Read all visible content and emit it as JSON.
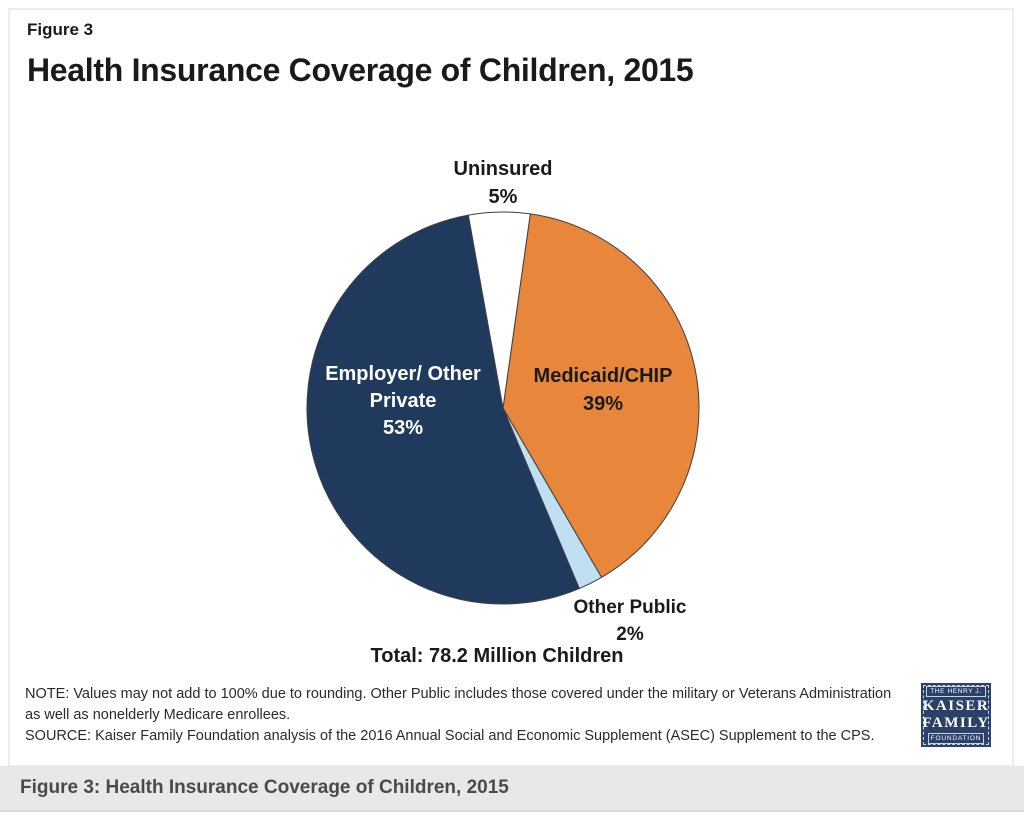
{
  "page": {
    "figure_label": "Figure 3",
    "title": "Health Insurance Coverage of Children, 2015",
    "note_text": "NOTE: Values may not add to 100% due to rounding. Other Public includes those covered under the military or Veterans Administration as well as nonelderly Medicare enrollees.",
    "source_text": "SOURCE: Kaiser Family Foundation analysis of the 2016 Annual Social and Economic Supplement (ASEC) Supplement to the CPS.",
    "footer_bar_title": "Figure 3: Health Insurance Coverage of Children, 2015"
  },
  "logo": {
    "line1": "THE HENRY J.",
    "line2": "KAISER",
    "line3": "FAMILY",
    "line4": "FOUNDATION",
    "background_color": "#2b4168"
  },
  "chart_data": {
    "type": "pie",
    "title": "Health Insurance Coverage of Children, 2015",
    "total_label": "Total:  78.2 Million Children",
    "start_angle_deg": 8,
    "stroke_color": "#3f3f3f",
    "slices": [
      {
        "label": "Medicaid/CHIP",
        "value": 39,
        "display": "39%",
        "color": "#E8873B",
        "label_position": "inside"
      },
      {
        "label": "Other Public",
        "value": 2,
        "display": "2%",
        "color": "#BEE0F2",
        "label_position": "outside-bottom-right"
      },
      {
        "label": "Employer/ Other Private",
        "value": 53,
        "display": "53%",
        "color": "#1F3A5C",
        "label_position": "inside"
      },
      {
        "label": "Uninsured",
        "value": 5,
        "display": "5%",
        "color": "#FFFFFF",
        "label_position": "outside-top"
      }
    ]
  }
}
